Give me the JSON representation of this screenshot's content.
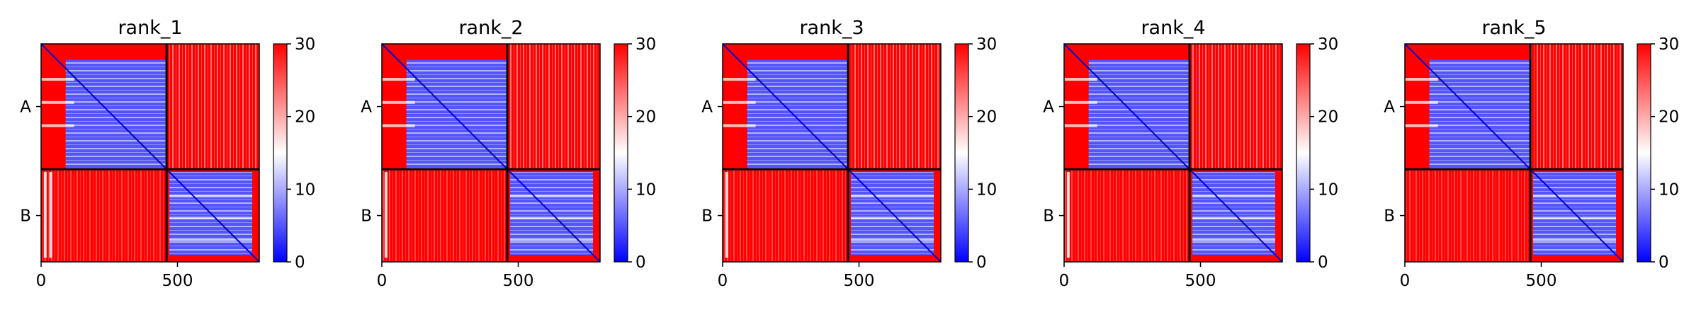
{
  "chart_data": [
    {
      "type": "heatmap",
      "title": "rank_1",
      "chain_labels": [
        "A",
        "B"
      ],
      "chain_boundary": 460,
      "x_ticks": [
        0,
        500
      ],
      "xlim": [
        0,
        800
      ],
      "colorbar": {
        "min": 0,
        "max": 30,
        "ticks": [
          0,
          10,
          20,
          30
        ],
        "colormap": "bwr"
      },
      "intra_chain_value": 5,
      "inter_chain_value": 30,
      "stripe_rows_A": [
        130,
        215,
        300
      ],
      "stripe_rows_B": [
        560,
        640,
        720
      ],
      "border_cols_B": [
        10,
        30
      ]
    },
    {
      "type": "heatmap",
      "title": "rank_2",
      "chain_labels": [
        "A",
        "B"
      ],
      "chain_boundary": 460,
      "x_ticks": [
        0,
        500
      ],
      "xlim": [
        0,
        800
      ],
      "colorbar": {
        "min": 0,
        "max": 30,
        "ticks": [
          0,
          10,
          20,
          30
        ],
        "colormap": "bwr"
      },
      "intra_chain_value": 5,
      "inter_chain_value": 30,
      "stripe_rows_A": [
        130,
        215,
        300
      ],
      "stripe_rows_B": [
        560,
        640,
        720
      ],
      "border_cols_B": [
        10
      ]
    },
    {
      "type": "heatmap",
      "title": "rank_3",
      "chain_labels": [
        "A",
        "B"
      ],
      "chain_boundary": 460,
      "x_ticks": [
        0,
        500
      ],
      "xlim": [
        0,
        800
      ],
      "colorbar": {
        "min": 0,
        "max": 30,
        "ticks": [
          0,
          10,
          20,
          30
        ],
        "colormap": "bwr"
      },
      "intra_chain_value": 5,
      "inter_chain_value": 30,
      "stripe_rows_A": [
        130,
        215,
        300
      ],
      "stripe_rows_B": [
        560,
        640,
        720
      ],
      "border_cols_B": [
        10
      ]
    },
    {
      "type": "heatmap",
      "title": "rank_4",
      "chain_labels": [
        "A",
        "B"
      ],
      "chain_boundary": 460,
      "x_ticks": [
        0,
        500
      ],
      "xlim": [
        0,
        800
      ],
      "colorbar": {
        "min": 0,
        "max": 30,
        "ticks": [
          0,
          10,
          20,
          30
        ],
        "colormap": "bwr"
      },
      "intra_chain_value": 5,
      "inter_chain_value": 30,
      "stripe_rows_A": [
        130,
        215,
        300
      ],
      "stripe_rows_B": [
        560,
        640,
        720
      ],
      "border_cols_B": [
        10
      ]
    },
    {
      "type": "heatmap",
      "title": "rank_5",
      "chain_labels": [
        "A",
        "B"
      ],
      "chain_boundary": 460,
      "x_ticks": [
        0,
        500
      ],
      "xlim": [
        0,
        800
      ],
      "colorbar": {
        "min": 0,
        "max": 30,
        "ticks": [
          0,
          10,
          20,
          30
        ],
        "colormap": "bwr"
      },
      "intra_chain_value": 5,
      "inter_chain_value": 30,
      "stripe_rows_A": [
        130,
        215,
        300
      ],
      "stripe_rows_B": [
        560,
        640,
        720
      ],
      "border_cols_B": []
    }
  ]
}
